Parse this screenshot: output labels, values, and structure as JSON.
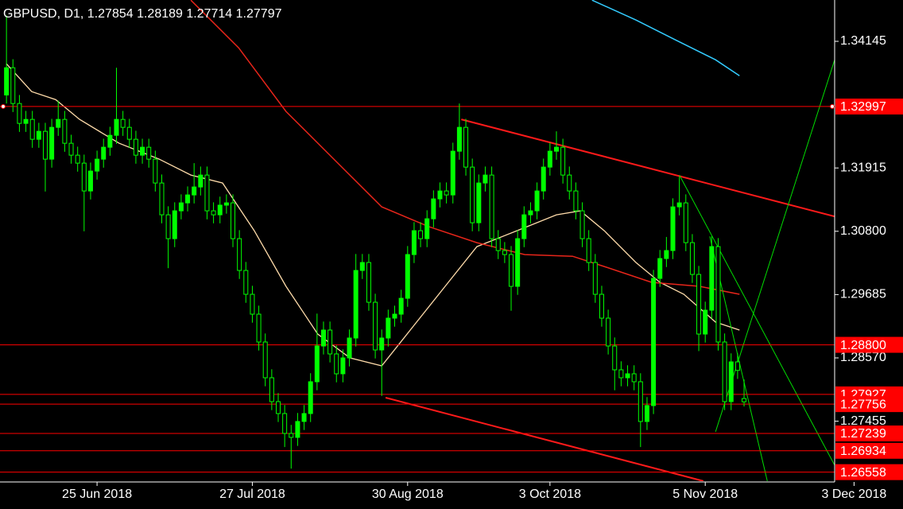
{
  "chart_data": {
    "type": "candlestick",
    "title": "GBPUSD, D1, 1.27854 1.28189 1.27714 1.27797",
    "bull_color": "#00ff00",
    "bear_color": "#000000",
    "wick_color": "#00ff00",
    "xlim": [
      -1,
      128
    ],
    "xticks": [
      {
        "value": 14,
        "label": "25 Jun 2018"
      },
      {
        "value": 38,
        "label": "27 Jul 2018"
      },
      {
        "value": 62,
        "label": "30 Aug 2018"
      },
      {
        "value": 84,
        "label": "3 Oct 2018"
      },
      {
        "value": 108,
        "label": "5 Nov 2018"
      },
      {
        "value": 131,
        "label": "3 Dec 2018"
      }
    ],
    "ylim": [
      1.26399,
      1.34873
    ],
    "yticks": [
      1.34145,
      1.31915,
      {
        "value": 1.308,
        "label": "1.30800"
      },
      1.29685,
      {
        "value": 1.2857,
        "label": "1.28570"
      },
      1.27455
    ],
    "candles": [
      [
        1.332,
        1.346,
        1.3305,
        1.3368
      ],
      [
        1.3368,
        1.3383,
        1.329,
        1.3305
      ],
      [
        1.3305,
        1.332,
        1.3255,
        1.327
      ],
      [
        1.327,
        1.3292,
        1.3255,
        1.3277
      ],
      [
        1.3277,
        1.3292,
        1.3227,
        1.3242
      ],
      [
        1.3242,
        1.3271,
        1.3227,
        1.3256
      ],
      [
        1.3256,
        1.3271,
        1.315,
        1.3207
      ],
      [
        1.3207,
        1.3278,
        1.3192,
        1.3263
      ],
      [
        1.3263,
        1.331,
        1.3248,
        1.3277
      ],
      [
        1.3277,
        1.3292,
        1.322,
        1.3235
      ],
      [
        1.3235,
        1.325,
        1.3199,
        1.3214
      ],
      [
        1.3214,
        1.3229,
        1.3185,
        1.32
      ],
      [
        1.32,
        1.3215,
        1.308,
        1.3151
      ],
      [
        1.3151,
        1.3201,
        1.3136,
        1.3186
      ],
      [
        1.3186,
        1.3222,
        1.3171,
        1.3207
      ],
      [
        1.3207,
        1.3243,
        1.3192,
        1.3228
      ],
      [
        1.3228,
        1.3264,
        1.3213,
        1.3249
      ],
      [
        1.3249,
        1.3368,
        1.3234,
        1.3277
      ],
      [
        1.3277,
        1.3292,
        1.3248,
        1.3263
      ],
      [
        1.3263,
        1.3278,
        1.3227,
        1.3242
      ],
      [
        1.3242,
        1.3257,
        1.3199,
        1.3214
      ],
      [
        1.3214,
        1.3243,
        1.3199,
        1.3228
      ],
      [
        1.3228,
        1.3243,
        1.3192,
        1.3207
      ],
      [
        1.3207,
        1.3222,
        1.315,
        1.3165
      ],
      [
        1.3165,
        1.318,
        1.3094,
        1.3109
      ],
      [
        1.3109,
        1.3124,
        1.3015,
        1.3067
      ],
      [
        1.3067,
        1.3131,
        1.3052,
        1.3116
      ],
      [
        1.3116,
        1.3145,
        1.3101,
        1.313
      ],
      [
        1.313,
        1.3159,
        1.3115,
        1.3144
      ],
      [
        1.3144,
        1.32,
        1.3129,
        1.3158
      ],
      [
        1.3158,
        1.3194,
        1.3143,
        1.3179
      ],
      [
        1.3179,
        1.3194,
        1.3101,
        1.3116
      ],
      [
        1.3116,
        1.3131,
        1.3094,
        1.3109
      ],
      [
        1.3109,
        1.3141,
        1.3094,
        1.3126
      ],
      [
        1.3126,
        1.3145,
        1.3111,
        1.313
      ],
      [
        1.313,
        1.3145,
        1.3052,
        1.3067
      ],
      [
        1.3067,
        1.3082,
        1.2996,
        1.3011
      ],
      [
        1.3011,
        1.3026,
        1.2954,
        1.2969
      ],
      [
        1.2969,
        1.2984,
        1.2919,
        1.2934
      ],
      [
        1.2934,
        1.2949,
        1.287,
        1.2885
      ],
      [
        1.2885,
        1.29,
        1.2807,
        1.2822
      ],
      [
        1.2822,
        1.2837,
        1.2765,
        1.278
      ],
      [
        1.278,
        1.2795,
        1.2744,
        1.2759
      ],
      [
        1.2759,
        1.2774,
        1.27,
        1.2724
      ],
      [
        1.2724,
        1.2739,
        1.2662,
        1.2717
      ],
      [
        1.2717,
        1.276,
        1.2702,
        1.2745
      ],
      [
        1.2745,
        1.2774,
        1.273,
        1.2759
      ],
      [
        1.2759,
        1.283,
        1.2744,
        1.2815
      ],
      [
        1.2815,
        1.2935,
        1.28,
        1.2878
      ],
      [
        1.2878,
        1.2921,
        1.2863,
        1.2906
      ],
      [
        1.2906,
        1.2921,
        1.2849,
        1.2864
      ],
      [
        1.2864,
        1.2879,
        1.2814,
        1.2829
      ],
      [
        1.2829,
        1.2872,
        1.2814,
        1.2857
      ],
      [
        1.2857,
        1.2907,
        1.2842,
        1.2892
      ],
      [
        1.2892,
        1.304,
        1.2877,
        1.3011
      ],
      [
        1.3011,
        1.304,
        1.2996,
        1.3025
      ],
      [
        1.3025,
        1.304,
        1.294,
        1.2955
      ],
      [
        1.2955,
        1.297,
        1.2856,
        1.2871
      ],
      [
        1.2871,
        1.2907,
        1.279,
        1.2892
      ],
      [
        1.2892,
        1.2942,
        1.2877,
        1.2927
      ],
      [
        1.2927,
        1.2949,
        1.2912,
        1.2934
      ],
      [
        1.2934,
        1.2977,
        1.2919,
        1.2962
      ],
      [
        1.2962,
        1.3054,
        1.2947,
        1.3039
      ],
      [
        1.3039,
        1.3096,
        1.3024,
        1.3081
      ],
      [
        1.3081,
        1.3096,
        1.3052,
        1.3067
      ],
      [
        1.3067,
        1.3117,
        1.3052,
        1.3102
      ],
      [
        1.3102,
        1.3152,
        1.3087,
        1.3137
      ],
      [
        1.3137,
        1.3166,
        1.3122,
        1.3151
      ],
      [
        1.3151,
        1.3166,
        1.3129,
        1.3144
      ],
      [
        1.3144,
        1.3236,
        1.3129,
        1.3221
      ],
      [
        1.3221,
        1.3305,
        1.3206,
        1.3263
      ],
      [
        1.3263,
        1.3278,
        1.3178,
        1.3193
      ],
      [
        1.3193,
        1.3208,
        1.308,
        1.3095
      ],
      [
        1.3095,
        1.318,
        1.308,
        1.3165
      ],
      [
        1.3165,
        1.3194,
        1.315,
        1.3179
      ],
      [
        1.3179,
        1.3194,
        1.3052,
        1.3067
      ],
      [
        1.3067,
        1.3082,
        1.3031,
        1.3046
      ],
      [
        1.3046,
        1.3061,
        1.3024,
        1.3039
      ],
      [
        1.3039,
        1.3054,
        1.294,
        1.2983
      ],
      [
        1.2983,
        1.3082,
        1.2968,
        1.3067
      ],
      [
        1.3067,
        1.3124,
        1.3052,
        1.3109
      ],
      [
        1.3109,
        1.3131,
        1.3094,
        1.3116
      ],
      [
        1.3116,
        1.3166,
        1.3101,
        1.3151
      ],
      [
        1.3151,
        1.3208,
        1.3136,
        1.3193
      ],
      [
        1.3193,
        1.3236,
        1.3178,
        1.3221
      ],
      [
        1.3221,
        1.3256,
        1.3206,
        1.3228
      ],
      [
        1.3228,
        1.3243,
        1.3164,
        1.3179
      ],
      [
        1.3179,
        1.3194,
        1.3136,
        1.3151
      ],
      [
        1.3151,
        1.3166,
        1.3101,
        1.3116
      ],
      [
        1.3116,
        1.3131,
        1.3052,
        1.3067
      ],
      [
        1.3067,
        1.3082,
        1.301,
        1.3025
      ],
      [
        1.3025,
        1.304,
        1.2954,
        1.2969
      ],
      [
        1.2969,
        1.2984,
        1.2912,
        1.2927
      ],
      [
        1.2927,
        1.2942,
        1.2863,
        1.2878
      ],
      [
        1.2878,
        1.2893,
        1.28,
        1.2836
      ],
      [
        1.2836,
        1.2851,
        1.2807,
        1.2822
      ],
      [
        1.2822,
        1.2844,
        1.2807,
        1.2829
      ],
      [
        1.2829,
        1.2844,
        1.28,
        1.2815
      ],
      [
        1.2815,
        1.283,
        1.27,
        1.2745
      ],
      [
        1.2745,
        1.2788,
        1.273,
        1.2773
      ],
      [
        1.2773,
        1.3012,
        1.2758,
        1.2997
      ],
      [
        1.2997,
        1.3047,
        1.2982,
        1.3032
      ],
      [
        1.3032,
        1.307,
        1.3017,
        1.3046
      ],
      [
        1.3046,
        1.3138,
        1.3031,
        1.3123
      ],
      [
        1.3123,
        1.3176,
        1.3108,
        1.313
      ],
      [
        1.313,
        1.3145,
        1.3045,
        1.306
      ],
      [
        1.306,
        1.3075,
        1.2989,
        1.3004
      ],
      [
        1.3004,
        1.3019,
        1.2869,
        1.2899
      ],
      [
        1.2899,
        1.2956,
        1.2884,
        1.2941
      ],
      [
        1.2941,
        1.3071,
        1.2926,
        1.3053
      ],
      [
        1.3053,
        1.3068,
        1.287,
        1.2885
      ],
      [
        1.2885,
        1.29,
        1.2765,
        1.278
      ],
      [
        1.278,
        1.2865,
        1.2765,
        1.285
      ],
      [
        1.285,
        1.2865,
        1.282,
        1.2835
      ],
      [
        1.27854,
        1.28189,
        1.27714,
        1.27797
      ]
    ],
    "overlays": [
      {
        "color": "#ffdcaa",
        "width": 1.3,
        "x": [
          0,
          3.9,
          7.6,
          11.3,
          17.4,
          23.6,
          28.5,
          33.4,
          38.3,
          43.2,
          48.1,
          53.1,
          58,
          62.9,
          67.8,
          72.7,
          78.9,
          85,
          88.7,
          92.4,
          97.3,
          101,
          104.7,
          109.6,
          113.3
        ],
        "values": [
          1.3375,
          1.3326,
          1.3312,
          1.3277,
          1.3235,
          1.3207,
          1.3179,
          1.3165,
          1.3081,
          1.2983,
          1.2899,
          1.2857,
          1.2843,
          1.2913,
          1.2983,
          1.3053,
          1.3081,
          1.3109,
          1.3116,
          1.3081,
          1.3025,
          1.299,
          1.2969,
          1.292,
          1.2906
        ]
      },
      {
        "color": "#e8251a",
        "width": 1.5,
        "x": [
          28.5,
          35.9,
          43.2,
          50.6,
          58,
          65.3,
          72.7,
          80.1,
          87.5,
          92.4,
          99.7,
          107.1,
          113.3
        ],
        "values": [
          1.3487,
          1.3403,
          1.3291,
          1.3207,
          1.3123,
          1.3088,
          1.306,
          1.3039,
          1.3036,
          1.3018,
          1.299,
          1.2983,
          1.2969
        ]
      },
      {
        "color": "#33ccff",
        "width": 1.5,
        "x": [
          90.5,
          97.3,
          103.4,
          109.6,
          113.3
        ],
        "values": [
          1.3487,
          1.3452,
          1.3417,
          1.3382,
          1.3354
        ]
      },
      {
        "color": "#ff1a1a",
        "width": 2,
        "x": [
          70.3,
          128
        ],
        "values": [
          1.3277,
          1.3106
        ]
      },
      {
        "color": "#ff1a1a",
        "width": 2,
        "x": [
          58.6,
          107.7
        ],
        "values": [
          1.2787,
          1.264
        ]
      },
      {
        "color": "#00dd00",
        "width": 1,
        "x": [
          104,
          128
        ],
        "values": [
          1.3179,
          1.2668
        ]
      },
      {
        "color": "#00dd00",
        "width": 1,
        "x": [
          108.7,
          117.6
        ],
        "values": [
          1.3071,
          1.264
        ]
      },
      {
        "color": "#00dd00",
        "width": 1,
        "x": [
          109.6,
          128
        ],
        "values": [
          1.2727,
          1.3382
        ]
      }
    ],
    "levels_color": "#ff0000",
    "levels": [
      1.32997,
      {
        "value": 1.288,
        "label": "1.28800"
      },
      1.27927,
      1.27756,
      1.27239,
      1.26934,
      1.26558
    ]
  }
}
